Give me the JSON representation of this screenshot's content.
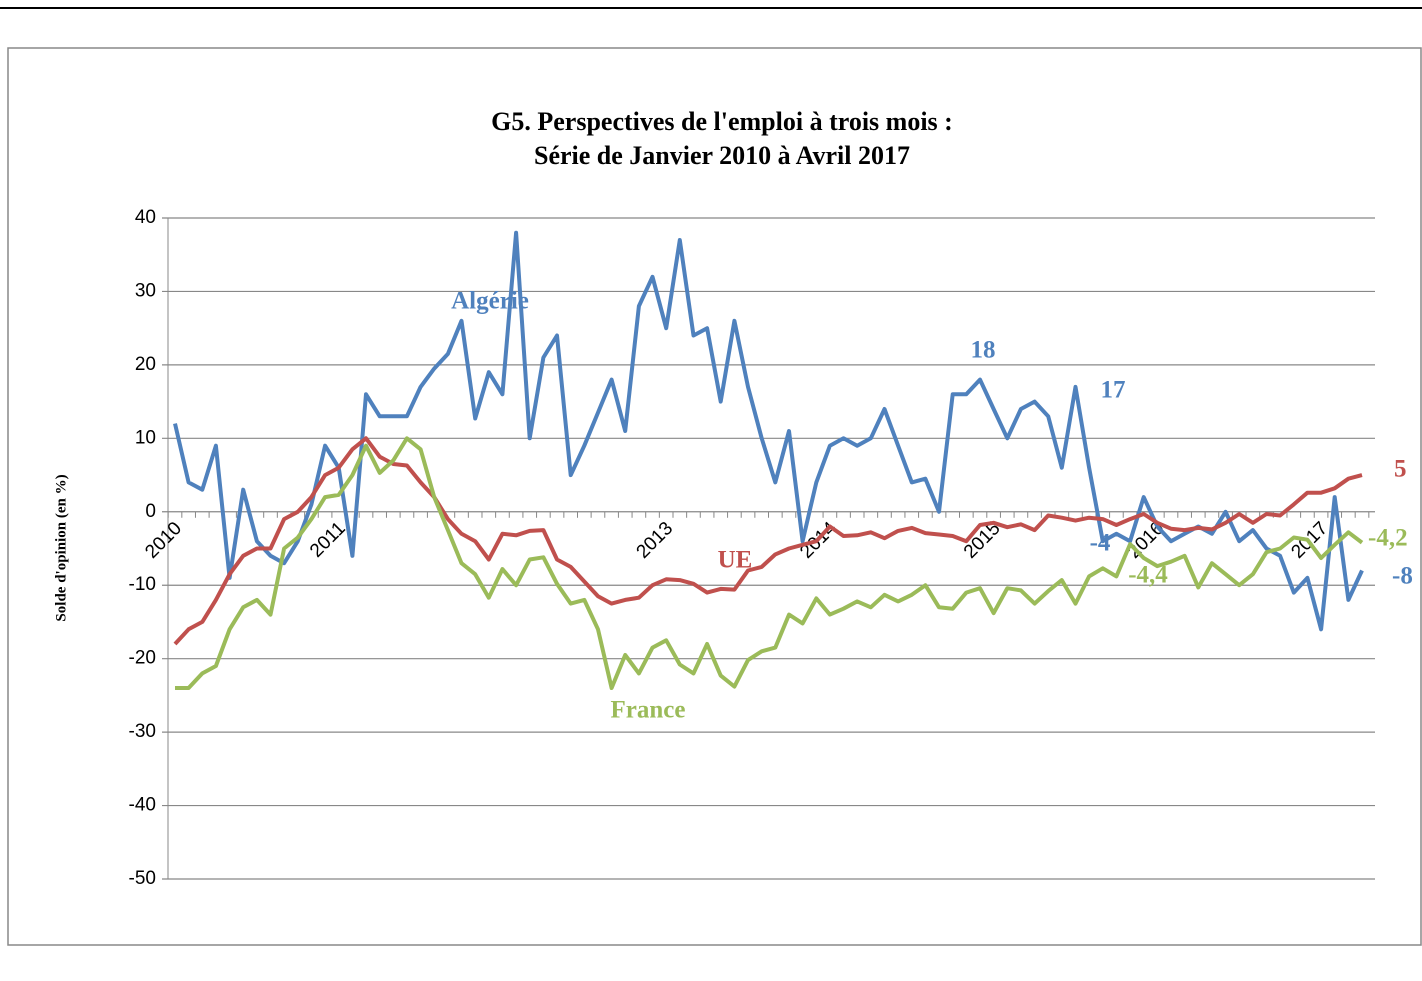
{
  "chart_data": {
    "type": "line",
    "title": [
      "G5. Perspectives de l'emploi à trois mois :",
      "Série de Janvier 2010 à Avril 2017"
    ],
    "y_label": "Solde d'opinion (en %)",
    "categories": [
      "2010",
      null,
      null,
      null,
      null,
      null,
      null,
      null,
      null,
      null,
      null,
      null,
      "2011",
      null,
      null,
      null,
      null,
      null,
      null,
      null,
      null,
      null,
      null,
      null,
      null,
      null,
      null,
      null,
      null,
      null,
      null,
      null,
      null,
      null,
      null,
      null,
      "2013",
      null,
      null,
      null,
      null,
      null,
      null,
      null,
      null,
      null,
      null,
      null,
      "2014",
      null,
      null,
      null,
      null,
      null,
      null,
      null,
      null,
      null,
      null,
      null,
      "2015",
      null,
      null,
      null,
      null,
      null,
      null,
      null,
      null,
      null,
      null,
      null,
      "2016",
      null,
      null,
      null,
      null,
      null,
      null,
      null,
      null,
      null,
      null,
      null,
      "2017",
      null,
      null,
      null
    ],
    "series": [
      {
        "name": "Algérie",
        "color": "#4f81bd",
        "values": [
          12,
          4,
          3,
          9,
          -9,
          3,
          -4,
          -6,
          -7,
          -4,
          1,
          9,
          6,
          -6,
          16,
          13,
          13,
          13,
          17,
          19.5,
          21.5,
          26,
          12.7,
          19,
          16,
          38,
          10,
          21,
          24,
          5,
          9,
          13.5,
          18,
          11,
          28,
          32,
          25,
          37,
          24,
          25,
          15,
          26,
          17,
          10,
          4,
          11,
          -4,
          4,
          9,
          10,
          9,
          10,
          14,
          9,
          4,
          4.5,
          0,
          16,
          16,
          18,
          14,
          10,
          14,
          15,
          13,
          6,
          17,
          6,
          -4,
          -3,
          -4,
          2,
          -2,
          -4,
          -3,
          -2,
          -3,
          0,
          -4,
          -2.5,
          -5,
          -6,
          -11,
          -9,
          -16,
          2,
          -12,
          -8
        ],
        "value_labels": [
          null,
          null,
          null,
          null,
          null,
          null,
          null,
          null,
          null,
          null,
          null,
          null,
          null,
          null,
          null,
          null,
          null,
          null,
          null,
          null,
          null,
          null,
          null,
          null,
          null,
          null,
          null,
          null,
          null,
          null,
          null,
          null,
          null,
          null,
          null,
          null,
          null,
          null,
          null,
          null,
          null,
          null,
          null,
          null,
          null,
          null,
          null,
          null,
          null,
          null,
          null,
          null,
          null,
          null,
          null,
          null,
          null,
          null,
          null,
          "18",
          null,
          null,
          null,
          null,
          null,
          null,
          "17",
          null,
          "-4",
          null,
          null,
          null,
          null,
          null,
          null,
          null,
          null,
          null,
          null,
          null,
          null,
          null,
          null,
          null,
          null,
          null,
          null,
          "-8"
        ]
      },
      {
        "name": "UE",
        "color": "#c0504d",
        "values": [
          -18,
          -16,
          -15,
          -12,
          -8.5,
          -6,
          -5,
          -5,
          -1,
          0,
          2,
          5,
          6,
          8.5,
          10,
          7.5,
          6.5,
          6.3,
          4,
          2,
          -1,
          -3,
          -4,
          -6.5,
          -3,
          -3.2,
          -2.6,
          -2.5,
          -6.5,
          -7.5,
          -9.5,
          -11.5,
          -12.5,
          -12,
          -11.7,
          -10,
          -9.2,
          -9.3,
          -9.8,
          -11,
          -10.5,
          -10.6,
          -8,
          -7.5,
          -5.8,
          -5,
          -4.5,
          -4,
          -2,
          -3.3,
          -3.2,
          -2.8,
          -3.6,
          -2.6,
          -2.2,
          -2.9,
          -3.1,
          -3.3,
          -4,
          -1.8,
          -1.5,
          -2.1,
          -1.7,
          -2.5,
          -0.5,
          -0.8,
          -1.2,
          -0.8,
          -1,
          -1.8,
          -1,
          -0.3,
          -1.5,
          -2.3,
          -2.5,
          -2.2,
          -2.4,
          -1.5,
          -0.3,
          -1.5,
          -0.3,
          -0.5,
          1,
          2.6,
          2.6,
          3.2,
          4.5,
          5
        ],
        "value_labels": [
          null,
          null,
          null,
          null,
          null,
          null,
          null,
          null,
          null,
          null,
          null,
          null,
          null,
          null,
          null,
          null,
          null,
          null,
          null,
          null,
          null,
          null,
          null,
          null,
          null,
          null,
          null,
          null,
          null,
          null,
          null,
          null,
          null,
          null,
          null,
          null,
          null,
          null,
          null,
          null,
          null,
          null,
          null,
          null,
          null,
          null,
          null,
          null,
          null,
          null,
          null,
          null,
          null,
          null,
          null,
          null,
          null,
          null,
          null,
          null,
          null,
          null,
          null,
          null,
          null,
          null,
          null,
          null,
          null,
          null,
          null,
          null,
          null,
          null,
          null,
          null,
          null,
          null,
          null,
          null,
          null,
          null,
          null,
          null,
          null,
          null,
          null,
          "5"
        ]
      },
      {
        "name": "France",
        "color": "#9bbb59",
        "values": [
          -24,
          -24,
          -22,
          -21,
          -16,
          -13,
          -12,
          -14,
          -5,
          -3.5,
          -1,
          2,
          2.3,
          5,
          9,
          5.3,
          7,
          10,
          8.5,
          2,
          -2.5,
          -7,
          -8.5,
          -11.7,
          -7.8,
          -10,
          -6.5,
          -6.2,
          -9.8,
          -12.5,
          -12,
          -16,
          -24,
          -19.5,
          -22,
          -18.5,
          -17.5,
          -20.8,
          -22,
          -18,
          -22.3,
          -23.8,
          -20.2,
          -19,
          -18.5,
          -14,
          -15.2,
          -11.8,
          -14,
          -13.2,
          -12.2,
          -13,
          -11.3,
          -12.2,
          -11.3,
          -10,
          -13,
          -13.2,
          -11,
          -10.4,
          -13.8,
          -10.4,
          -10.7,
          -12.5,
          -10.8,
          -9.3,
          -12.5,
          -8.8,
          -7.7,
          -8.8,
          -4.4,
          -6.3,
          -7.4,
          -6.8,
          -6,
          -10.3,
          -7,
          -8.5,
          -10,
          -8.5,
          -5.5,
          -5,
          -3.5,
          -3.8,
          -6.3,
          -4.5,
          -2.8,
          -4.2
        ],
        "value_labels": [
          null,
          null,
          null,
          null,
          null,
          null,
          null,
          null,
          null,
          null,
          null,
          null,
          null,
          null,
          null,
          null,
          null,
          null,
          null,
          null,
          null,
          null,
          null,
          null,
          null,
          null,
          null,
          null,
          null,
          null,
          null,
          null,
          null,
          null,
          null,
          null,
          null,
          null,
          null,
          null,
          null,
          null,
          null,
          null,
          null,
          null,
          null,
          null,
          null,
          null,
          null,
          null,
          null,
          null,
          null,
          null,
          null,
          null,
          null,
          null,
          null,
          null,
          null,
          null,
          null,
          null,
          null,
          null,
          null,
          null,
          "-4,4",
          null,
          null,
          null,
          null,
          null,
          null,
          null,
          null,
          null,
          null,
          null,
          null,
          null,
          null,
          null,
          null,
          "-4,2"
        ]
      }
    ],
    "ylim": [
      -50,
      40
    ],
    "yticks": [
      -50,
      -40,
      -30,
      -20,
      -10,
      0,
      10,
      20,
      30,
      40
    ],
    "grid": true
  }
}
